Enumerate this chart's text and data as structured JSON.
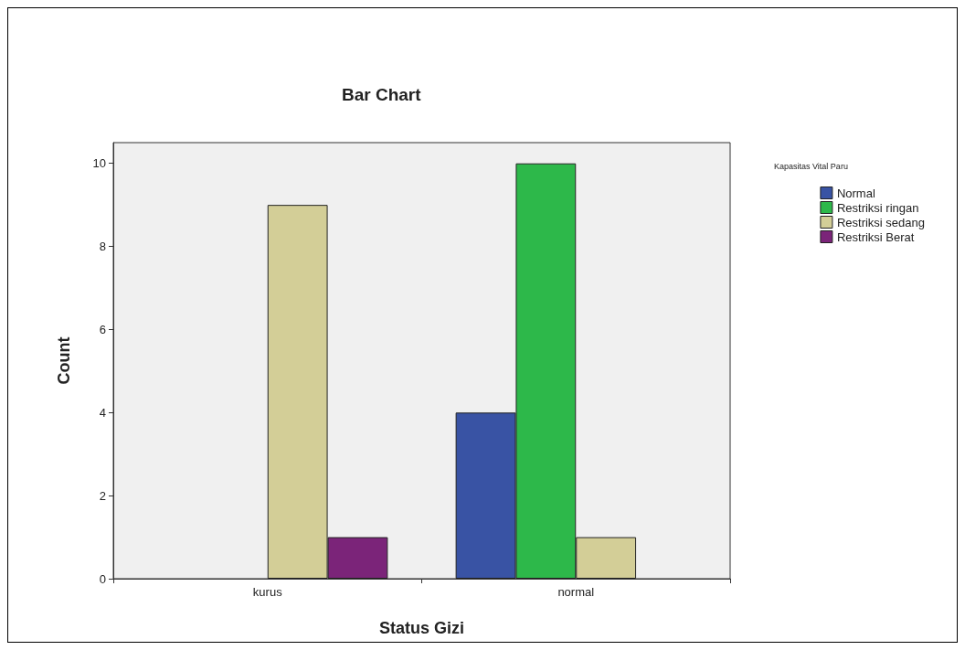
{
  "chart_data": {
    "type": "bar",
    "title": "Bar Chart",
    "xlabel": "Status Gizi",
    "ylabel": "Count",
    "legend_title": "Kapasitas Vital Paru",
    "categories": [
      "kurus",
      "normal"
    ],
    "series": [
      {
        "name": "Normal",
        "color": "#3953a4",
        "values": [
          0,
          4
        ]
      },
      {
        "name": "Restriksi ringan",
        "color": "#2db84a",
        "values": [
          0,
          10
        ]
      },
      {
        "name": "Restriksi sedang",
        "color": "#d3ce97",
        "values": [
          9,
          1
        ]
      },
      {
        "name": "Restriksi Berat",
        "color": "#7b2479",
        "values": [
          1,
          0
        ]
      }
    ],
    "ylim": [
      0,
      10.5
    ],
    "yticks": [
      0,
      2,
      4,
      6,
      8,
      10
    ],
    "grid": false,
    "legend": "top right"
  }
}
